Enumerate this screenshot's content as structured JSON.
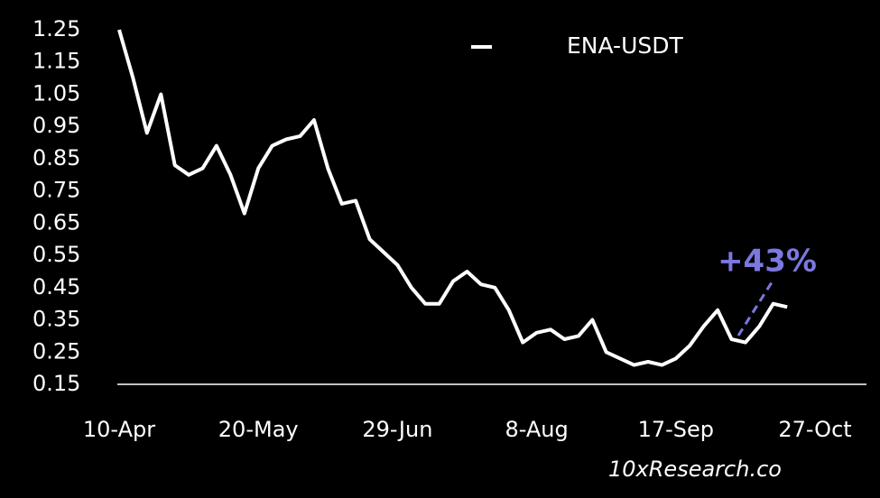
{
  "chart_data": {
    "type": "line",
    "series": [
      {
        "name": "ENA-USDT",
        "color": "#ffffff",
        "values": [
          1.25,
          1.1,
          0.93,
          1.05,
          0.83,
          0.8,
          0.82,
          0.89,
          0.8,
          0.68,
          0.82,
          0.89,
          0.91,
          0.92,
          0.97,
          0.82,
          0.71,
          0.72,
          0.6,
          0.56,
          0.52,
          0.45,
          0.4,
          0.4,
          0.47,
          0.5,
          0.46,
          0.45,
          0.38,
          0.28,
          0.31,
          0.32,
          0.29,
          0.3,
          0.35,
          0.25,
          0.23,
          0.21,
          0.22,
          0.21,
          0.23,
          0.27,
          0.33,
          0.38,
          0.29,
          0.28,
          0.33,
          0.4,
          0.39,
          null,
          null
        ]
      }
    ],
    "categories": [
      "10-Apr",
      null,
      null,
      null,
      null,
      null,
      null,
      null,
      null,
      null,
      "20-May",
      null,
      null,
      null,
      null,
      null,
      null,
      null,
      null,
      null,
      "29-Jun",
      null,
      null,
      null,
      null,
      null,
      null,
      null,
      null,
      null,
      "8-Aug",
      null,
      null,
      null,
      null,
      null,
      null,
      null,
      null,
      null,
      "17-Sep",
      null,
      null,
      null,
      null,
      null,
      null,
      null,
      null,
      null,
      "27-Oct"
    ],
    "ylim": [
      0.15,
      1.25
    ],
    "yticks": [
      0.15,
      0.25,
      0.35,
      0.45,
      0.55,
      0.65,
      0.75,
      0.85,
      0.95,
      1.05,
      1.15,
      1.25
    ],
    "annotation": "+43%",
    "annotation_color": "#7b78e0",
    "watermark": "10xResearch.co",
    "legend": "top"
  }
}
